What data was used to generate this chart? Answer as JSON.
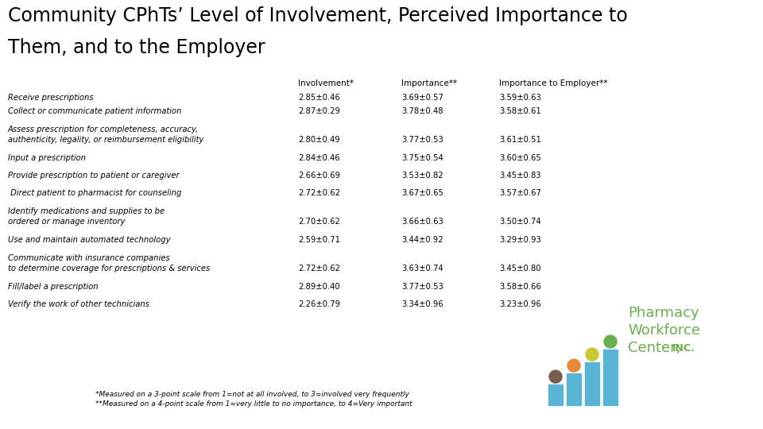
{
  "title_line1": "Community CPhTs’ Level of Involvement, Perceived Importance to",
  "title_line2": "Them, and to the Employer",
  "col_headers": [
    "Involvement*",
    "Importance**",
    "Importance to Employer**"
  ],
  "rows": [
    {
      "label_lines": [
        "Receive prescriptions"
      ],
      "values": [
        "2.85±0.46",
        "3.69±0.57",
        "3.59±0.63"
      ]
    },
    {
      "label_lines": [
        "Collect or communicate patient information"
      ],
      "values": [
        "2.87±0.29",
        "3.78±0.48",
        "3.58±0.61"
      ]
    },
    {
      "label_lines": [
        "Assess prescription for completeness, accuracy,",
        "authenticity, legality, or reimbursement eligibility"
      ],
      "values": [
        "2.80±0.49",
        "3.77±0.53",
        "3.61±0.51"
      ]
    },
    {
      "label_lines": [
        "Input a prescription"
      ],
      "values": [
        "2.84±0.46",
        "3.75±0.54",
        "3.60±0.65"
      ]
    },
    {
      "label_lines": [
        "Provide prescription to patient or caregiver"
      ],
      "values": [
        "2.66±0.69",
        "3.53±0.82",
        "3.45±0.83"
      ]
    },
    {
      "label_lines": [
        " Direct patient to pharmacist for counseling"
      ],
      "values": [
        "2.72±0.62",
        "3.67±0.65",
        "3.57±0.67"
      ]
    },
    {
      "label_lines": [
        "Identify medications and supplies to be",
        "ordered or manage inventory"
      ],
      "values": [
        "2.70±0.62",
        "3.66±0.63",
        "3.50±0.74"
      ]
    },
    {
      "label_lines": [
        "Use and maintain automated technology"
      ],
      "values": [
        "2.59±0.71",
        "3.44±0.92",
        "3.29±0.93"
      ]
    },
    {
      "label_lines": [
        "Communicate with insurance companies",
        "to determine coverage for prescriptions & services"
      ],
      "values": [
        "2.72±0.62",
        "3.63±0.74",
        "3.45±0.80"
      ]
    },
    {
      "label_lines": [
        "Fill/label a prescription"
      ],
      "values": [
        "2.89±0.40",
        "3.77±0.53",
        "3.58±0.66"
      ]
    },
    {
      "label_lines": [
        "Verify the work of other technicians"
      ],
      "values": [
        "2.26±0.79",
        "3.34±0.96",
        "3.23±0.96"
      ]
    }
  ],
  "footnote1": "*Measured on a 3-point scale from 1=not at all involved, to 3=involved very frequently",
  "footnote2": "**Measured on a 4-point scale from 1=very little to no importance, to 4=Very important",
  "bg_color": "#ffffff",
  "text_color": "#000000",
  "title_color": "#000000",
  "label_font_size": 7.2,
  "value_font_size": 7.2,
  "header_font_size": 7.5,
  "title_font_size": 17,
  "footnote_font_size": 6.5,
  "pwc_bar_color": "#5ab4d6",
  "pwc_dot_colors": [
    "#7a5c4f",
    "#e8883a",
    "#c8c832",
    "#6ab04c"
  ],
  "pwc_text_color": "#6ab04c"
}
